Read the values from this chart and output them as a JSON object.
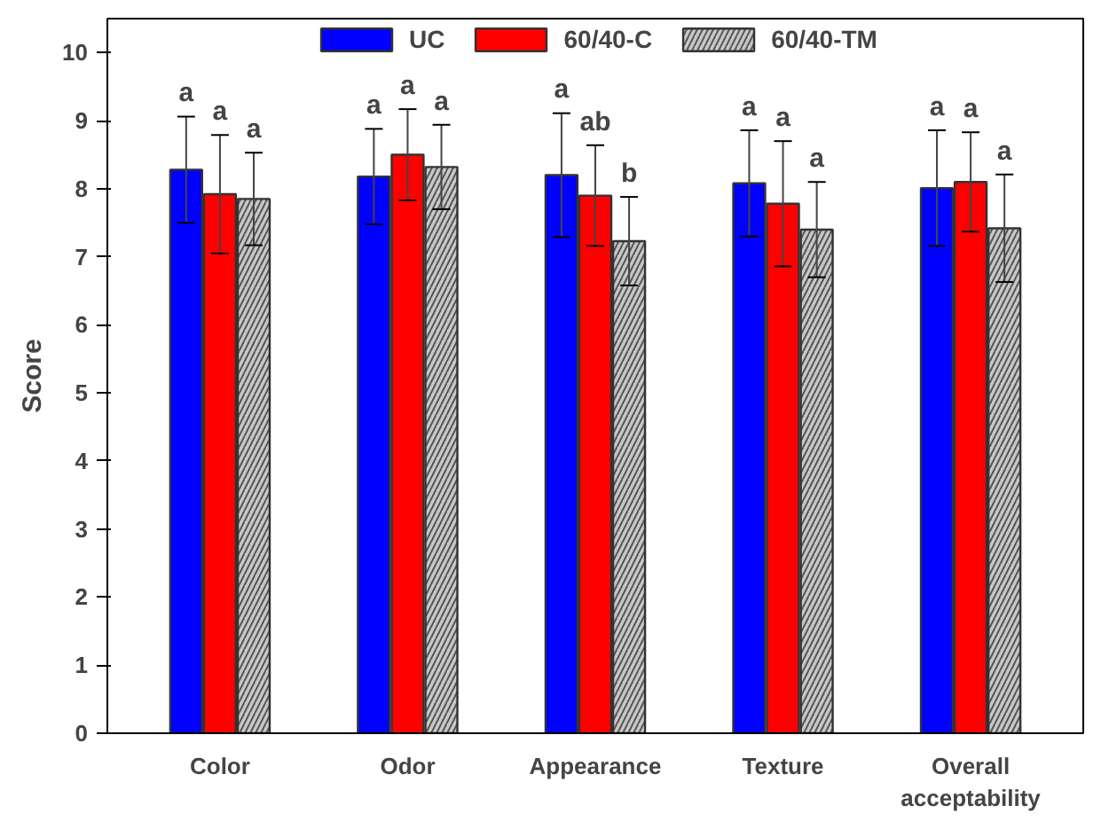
{
  "chart_data": {
    "type": "bar",
    "ylabel": "Score",
    "categories": [
      "Color",
      "Odor",
      "Appearance",
      "Texture",
      "Overall acceptability"
    ],
    "ylim": [
      0,
      10.5
    ],
    "yticks": [
      0,
      1,
      2,
      3,
      4,
      5,
      6,
      7,
      8,
      9,
      10
    ],
    "grid": false,
    "legend": "top",
    "series": [
      {
        "name": "UC",
        "color": "#0000ff",
        "values": [
          8.28,
          8.18,
          8.2,
          8.08,
          8.01
        ],
        "errors": [
          0.78,
          0.7,
          0.91,
          0.78,
          0.85
        ],
        "value_labels": [
          "a",
          "a",
          "a",
          "a",
          "a"
        ]
      },
      {
        "name": "60/40-C",
        "color": "#ff0000",
        "values": [
          7.92,
          8.5,
          7.9,
          7.78,
          8.1
        ],
        "errors": [
          0.87,
          0.67,
          0.74,
          0.92,
          0.73
        ],
        "value_labels": [
          "a",
          "a",
          "ab",
          "a",
          "a"
        ]
      },
      {
        "name": "60/40-TM",
        "color": "#c8c8c8",
        "values": [
          7.85,
          8.32,
          7.23,
          7.4,
          7.42
        ],
        "errors": [
          0.68,
          0.62,
          0.65,
          0.7,
          0.79
        ],
        "value_labels": [
          "a",
          "a",
          "b",
          "a",
          "a"
        ]
      }
    ]
  }
}
